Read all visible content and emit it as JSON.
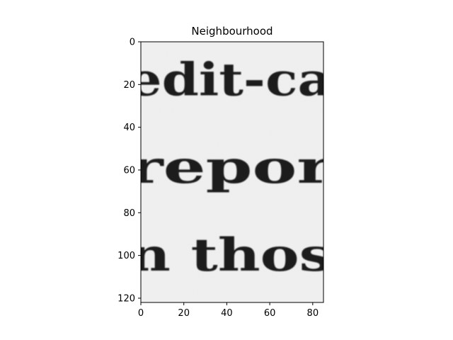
{
  "chart_data": {
    "type": "image",
    "title": "Neighbourhood",
    "image_extent": {
      "x": [
        0,
        85
      ],
      "y": [
        122,
        0
      ]
    },
    "x_ticks": [
      0,
      20,
      40,
      60,
      80
    ],
    "y_ticks": [
      0,
      20,
      40,
      60,
      80,
      100,
      120
    ],
    "y_axis_inverted": true,
    "colormap": "gray",
    "scanned_text_lines": [
      {
        "text": "edit-ca",
        "baseline_y": 25
      },
      {
        "text": "repor",
        "baseline_y": 66
      },
      {
        "text": "n thos",
        "baseline_y": 107
      }
    ]
  }
}
